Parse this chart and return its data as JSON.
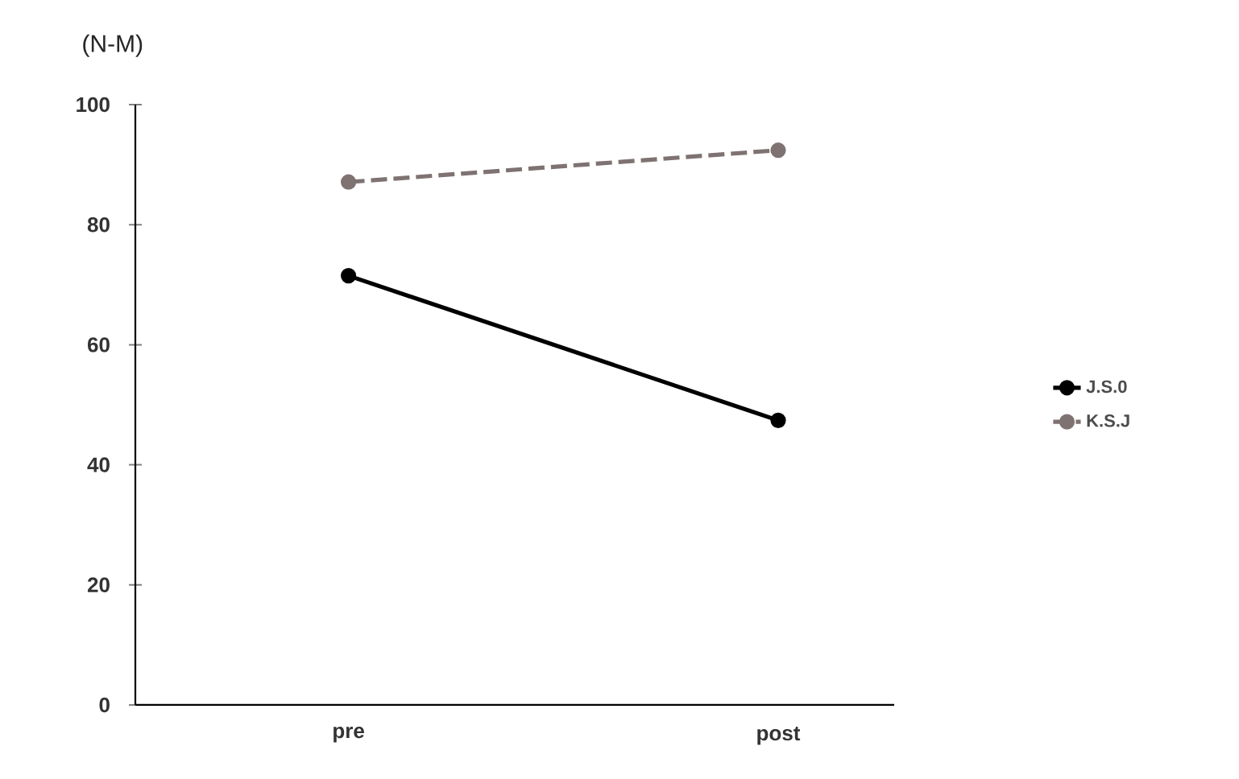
{
  "chart_data": {
    "type": "line",
    "ylabel": "(N-M)",
    "categories": [
      "pre",
      "post"
    ],
    "series": [
      {
        "name": "J.S.0",
        "color": "#000000",
        "values": [
          71.5,
          47.4
        ],
        "line_style": "solid"
      },
      {
        "name": "K.S.J",
        "color": "#7f7272",
        "values": [
          87.1,
          92.4
        ],
        "line_style": "dashed"
      }
    ],
    "ylim": [
      0,
      100
    ],
    "yticks": [
      0,
      20,
      40,
      60,
      80,
      100
    ],
    "marker": "circle",
    "legend": "right",
    "grid": false
  }
}
